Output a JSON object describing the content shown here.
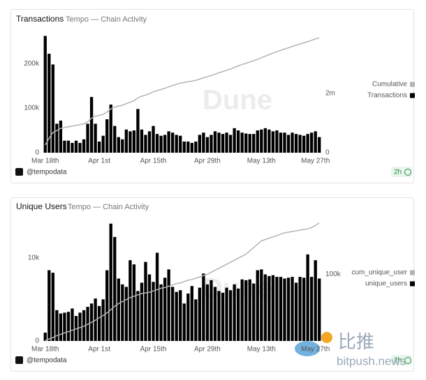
{
  "chart_data": [
    {
      "type": "bar",
      "title": "Transactions",
      "subtitle": "Tempo — Chain Activity",
      "watermark": "Dune",
      "source": "@tempodata",
      "refresh": "2h",
      "legend": "right",
      "categories": [
        "Mar 18th",
        null,
        null,
        null,
        null,
        null,
        null,
        null,
        null,
        null,
        null,
        null,
        null,
        null,
        "Apr 1st",
        null,
        null,
        null,
        null,
        null,
        null,
        null,
        null,
        null,
        null,
        null,
        null,
        null,
        "Apr 15th",
        null,
        null,
        null,
        null,
        null,
        null,
        null,
        null,
        null,
        null,
        null,
        null,
        null,
        "Apr 29th",
        null,
        null,
        null,
        null,
        null,
        null,
        null,
        null,
        null,
        null,
        null,
        null,
        null,
        "May 13th",
        null,
        null,
        null,
        null,
        null,
        null,
        null,
        null,
        null,
        null,
        null,
        null,
        null,
        "May 27th",
        null
      ],
      "ylim": [
        0,
        280000
      ],
      "yticks": [
        0,
        {
          "value": 100000,
          "label": "100k"
        },
        {
          "value": 200000,
          "label": "200k"
        }
      ],
      "y2lim": [
        0,
        4200000
      ],
      "y2ticks": [
        0,
        {
          "value": 2000000,
          "label": "2m"
        }
      ],
      "series": [
        {
          "name": "Cumulative",
          "color": "#b3b3b3",
          "axis": "y2",
          "kind": "line",
          "values": [
            262000,
            484000,
            682000,
            747000,
            819000,
            846000,
            873000,
            895000,
            922000,
            944000,
            974000,
            1039000,
            1164000,
            1229000,
            1254000,
            1292000,
            1367000,
            1475000,
            1535000,
            1570000,
            1600000,
            1652000,
            1700000,
            1750000,
            1848000,
            1900000,
            1940000,
            1988000,
            2048000,
            2090000,
            2128000,
            2168000,
            2216000,
            2261000,
            2301000,
            2339000,
            2364000,
            2389000,
            2411000,
            2436000,
            2476000,
            2521000,
            2556000,
            2596000,
            2644000,
            2689000,
            2731000,
            2776000,
            2816000,
            2871000,
            2921000,
            2966000,
            3009000,
            3051000,
            3093000,
            3143000,
            3195000,
            3250000,
            3302000,
            3350000,
            3400000,
            3445000,
            3490000,
            3530000,
            3575000,
            3617000,
            3657000,
            3695000,
            3737000,
            3782000,
            3830000,
            3865000
          ]
        },
        {
          "name": "Transactions",
          "color": "#000000",
          "kind": "bar",
          "values": [
            262000,
            222000,
            198000,
            65000,
            72000,
            27000,
            27000,
            22000,
            27000,
            22000,
            30000,
            65000,
            125000,
            65000,
            25000,
            38000,
            75000,
            108000,
            60000,
            35000,
            30000,
            52000,
            48000,
            50000,
            98000,
            52000,
            40000,
            48000,
            60000,
            42000,
            38000,
            40000,
            48000,
            45000,
            40000,
            38000,
            25000,
            25000,
            22000,
            25000,
            40000,
            45000,
            35000,
            40000,
            48000,
            45000,
            42000,
            45000,
            40000,
            55000,
            50000,
            45000,
            43000,
            42000,
            42000,
            50000,
            52000,
            55000,
            52000,
            48000,
            50000,
            45000,
            45000,
            40000,
            45000,
            42000,
            40000,
            38000,
            42000,
            45000,
            48000,
            35000
          ]
        }
      ]
    },
    {
      "type": "bar",
      "title": "Unique Users",
      "subtitle": "Tempo — Chain Activity",
      "watermark": "Dune",
      "source": "@tempodata",
      "refresh": "2h",
      "legend": "right",
      "categories": [
        "Mar 18th",
        null,
        null,
        null,
        null,
        null,
        null,
        null,
        null,
        null,
        null,
        null,
        null,
        null,
        "Apr 1st",
        null,
        null,
        null,
        null,
        null,
        null,
        null,
        null,
        null,
        null,
        null,
        null,
        null,
        "Apr 15th",
        null,
        null,
        null,
        null,
        null,
        null,
        null,
        null,
        null,
        null,
        null,
        null,
        null,
        "Apr 29th",
        null,
        null,
        null,
        null,
        null,
        null,
        null,
        null,
        null,
        null,
        null,
        null,
        null,
        "May 13th",
        null,
        null,
        null,
        null,
        null,
        null,
        null,
        null,
        null,
        null,
        null,
        null,
        null,
        "May 27th",
        null
      ],
      "ylim": [
        0,
        15000
      ],
      "yticks": [
        0,
        {
          "value": 10000,
          "label": "10k"
        }
      ],
      "y2lim": [
        0,
        187000
      ],
      "y2ticks": [
        {
          "value": 100000,
          "label": "100k"
        }
      ],
      "series": [
        {
          "name": "cum_unique_user",
          "color": "#b3b3b3",
          "axis": "y2",
          "kind": "line",
          "values": [
            500,
            3000,
            5000,
            8000,
            10000,
            12000,
            14000,
            16000,
            18000,
            20000,
            22000,
            25000,
            28000,
            31000,
            35000,
            38000,
            42000,
            47000,
            52000,
            56000,
            59000,
            62000,
            65000,
            67000,
            69000,
            71000,
            72000,
            73000,
            75000,
            77000,
            79000,
            80000,
            82000,
            84000,
            86000,
            87000,
            89000,
            91000,
            92000,
            94000,
            96000,
            98000,
            100000,
            103000,
            106000,
            109000,
            112000,
            115000,
            118000,
            121000,
            124000,
            127000,
            130000,
            135000,
            140000,
            145000,
            150000,
            152000,
            154000,
            156000,
            158000,
            160000,
            162000,
            163000,
            164000,
            165000,
            166000,
            167000,
            168000,
            170000,
            173000,
            177000
          ]
        },
        {
          "name": "unique_users",
          "color": "#000000",
          "kind": "bar",
          "values": [
            1000,
            8500,
            8200,
            3700,
            3300,
            3400,
            3500,
            3900,
            3000,
            3400,
            3700,
            4100,
            4500,
            5100,
            4200,
            5000,
            8500,
            14100,
            12500,
            7500,
            6800,
            6500,
            9700,
            9200,
            6000,
            7000,
            9500,
            8000,
            7100,
            10600,
            6800,
            7600,
            8600,
            6500,
            5900,
            6100,
            4500,
            5700,
            6600,
            5000,
            6400,
            8100,
            6800,
            7300,
            6500,
            6000,
            5800,
            6400,
            6100,
            6800,
            6300,
            7400,
            7300,
            7400,
            6900,
            8500,
            8600,
            8000,
            7800,
            7900,
            7700,
            7700,
            7500,
            7600,
            7700,
            7000,
            7700,
            7600,
            10400,
            7700,
            9700,
            7500
          ]
        }
      ]
    }
  ],
  "overlay": {
    "brand": "比推",
    "site": "bitpush.news"
  }
}
